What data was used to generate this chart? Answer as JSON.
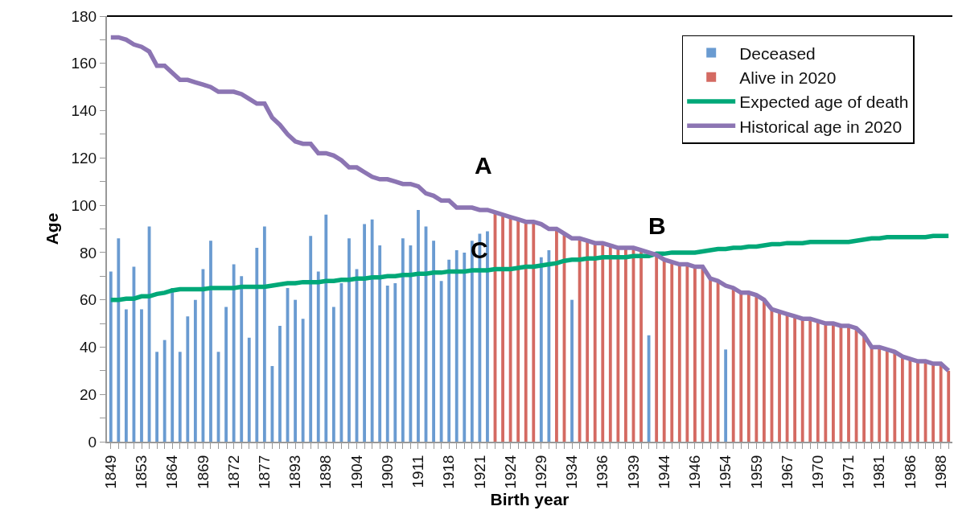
{
  "chart_data": {
    "type": "bar",
    "xlabel": "Birth year",
    "ylabel": "Age",
    "categories": [
      "1849",
      null,
      null,
      null,
      "1853",
      null,
      null,
      null,
      "1864",
      null,
      null,
      null,
      "1869",
      null,
      null,
      null,
      "1872",
      null,
      null,
      null,
      "1877",
      null,
      null,
      null,
      "1893",
      null,
      null,
      null,
      "1898",
      null,
      null,
      null,
      "1904",
      null,
      null,
      null,
      "1909",
      null,
      null,
      null,
      "1911",
      null,
      null,
      null,
      "1918",
      null,
      null,
      null,
      "1921",
      null,
      null,
      null,
      "1924",
      null,
      null,
      null,
      "1929",
      null,
      null,
      null,
      "1934",
      null,
      null,
      null,
      "1936",
      null,
      null,
      null,
      "1939",
      null,
      null,
      null,
      "1944",
      null,
      null,
      null,
      "1946",
      null,
      null,
      null,
      "1954",
      null,
      null,
      null,
      "1959",
      null,
      null,
      null,
      "1967",
      null,
      null,
      null,
      "1970",
      null,
      null,
      null,
      "1971",
      null,
      null,
      null,
      "1981",
      null,
      null,
      null,
      "1986",
      null,
      null,
      null,
      "1988",
      null
    ],
    "series": [
      {
        "name": "Deceased",
        "color": "#6a9bd1",
        "values": [
          72,
          86,
          56,
          74,
          56,
          91,
          38,
          43,
          65,
          38,
          53,
          60,
          73,
          85,
          38,
          57,
          75,
          70,
          44,
          82,
          91,
          32,
          49,
          65,
          60,
          52,
          87,
          72,
          96,
          57,
          67,
          86,
          73,
          92,
          94,
          83,
          66,
          67,
          86,
          83,
          98,
          91,
          85,
          68,
          77,
          81,
          80,
          85,
          88,
          89,
          null,
          null,
          null,
          null,
          null,
          null,
          78,
          81,
          null,
          null,
          60,
          null,
          null,
          null,
          null,
          null,
          null,
          null,
          null,
          null,
          45,
          null,
          null,
          null,
          null,
          null,
          null,
          null,
          null,
          null,
          39,
          null,
          null,
          null,
          null,
          null,
          null,
          null,
          null,
          null,
          null,
          null,
          null,
          null,
          null,
          null,
          null,
          null,
          null,
          null,
          null,
          null,
          null,
          null,
          null,
          null,
          null,
          null,
          null,
          null
        ]
      },
      {
        "name": "Alive in 2020",
        "color": "#d46a62",
        "values": [
          null,
          null,
          null,
          null,
          null,
          null,
          null,
          null,
          null,
          null,
          null,
          null,
          null,
          null,
          null,
          null,
          null,
          null,
          null,
          null,
          null,
          null,
          null,
          null,
          null,
          null,
          null,
          null,
          null,
          null,
          null,
          null,
          null,
          null,
          null,
          null,
          null,
          null,
          null,
          null,
          null,
          null,
          null,
          null,
          null,
          null,
          null,
          null,
          null,
          null,
          97,
          96,
          95,
          94,
          93,
          93,
          null,
          null,
          90,
          88,
          null,
          86,
          85,
          84,
          84,
          83,
          82,
          82,
          82,
          81,
          null,
          79,
          77,
          76,
          75,
          75,
          74,
          74,
          69,
          68,
          null,
          65,
          63,
          63,
          62,
          60,
          56,
          55,
          54,
          53,
          52,
          52,
          51,
          50,
          50,
          49,
          49,
          48,
          45,
          40,
          40,
          39,
          38,
          36,
          35,
          34,
          34,
          33,
          33,
          30
        ]
      },
      {
        "name": "Expected age of death",
        "type": "line",
        "color": "#00a878",
        "values": [
          60,
          60,
          60.5,
          60.5,
          61.5,
          61.5,
          62.5,
          63,
          64,
          64.5,
          64.5,
          64.5,
          64.5,
          65,
          65,
          65,
          65,
          65.5,
          65.5,
          65.5,
          65.5,
          66,
          66.5,
          67,
          67,
          67.5,
          67.5,
          67.5,
          68,
          68,
          68.5,
          68.5,
          69,
          69,
          69.5,
          69.5,
          70,
          70,
          70.5,
          70.5,
          71,
          71,
          71.5,
          71.5,
          72,
          72,
          72,
          72.5,
          72.5,
          72.5,
          73,
          73,
          73,
          73.5,
          74,
          74,
          74.5,
          75,
          75.5,
          76.5,
          77,
          77,
          77.5,
          77.5,
          78,
          78,
          78,
          78,
          78.5,
          78.5,
          78.5,
          79.5,
          79.5,
          80,
          80,
          80,
          80,
          80.5,
          81,
          81.5,
          81.5,
          82,
          82,
          82.5,
          82.5,
          83,
          83.5,
          83.5,
          84,
          84,
          84,
          84.5,
          84.5,
          84.5,
          84.5,
          84.5,
          84.5,
          85,
          85.5,
          86,
          86,
          86.5,
          86.5,
          86.5,
          86.5,
          86.5,
          86.5,
          87,
          87,
          87
        ]
      },
      {
        "name": "Historical age in 2020",
        "type": "line",
        "color": "#8c75b3",
        "values": [
          171,
          171,
          170,
          168,
          167,
          165,
          159,
          159,
          156,
          153,
          153,
          152,
          151,
          150,
          148,
          148,
          148,
          147,
          145,
          143,
          143,
          137,
          134,
          130,
          127,
          126,
          126,
          122,
          122,
          121,
          119,
          116,
          116,
          114,
          112,
          111,
          111,
          110,
          109,
          109,
          108,
          105,
          104,
          102,
          102,
          99,
          99,
          99,
          98,
          98,
          97,
          96,
          95,
          94,
          93,
          93,
          92,
          90,
          90,
          88,
          86,
          86,
          85,
          84,
          84,
          83,
          82,
          82,
          82,
          81,
          80,
          79,
          77,
          76,
          75,
          75,
          74,
          74,
          69,
          68,
          66,
          65,
          63,
          63,
          62,
          60,
          56,
          55,
          54,
          53,
          52,
          52,
          51,
          50,
          50,
          49,
          49,
          48,
          45,
          40,
          40,
          39,
          38,
          36,
          35,
          34,
          34,
          33,
          33,
          30
        ]
      }
    ],
    "ylim": [
      0,
      180
    ],
    "yticks": [
      0,
      {
        "value": 10,
        "label": null
      },
      20,
      {
        "value": 30,
        "label": null
      },
      40,
      {
        "value": 50,
        "label": null
      },
      60,
      {
        "value": 70,
        "label": null
      },
      80,
      {
        "value": 90,
        "label": null
      },
      100,
      {
        "value": 110,
        "label": null
      },
      120,
      {
        "value": 130,
        "label": null
      },
      140,
      {
        "value": 150,
        "label": null
      },
      160,
      {
        "value": 170,
        "label": null
      },
      180
    ],
    "annotations": [
      "A",
      "B",
      {
        "text": "C",
        "x": "1921",
        "y": 81
      }
    ],
    "legend": "top right",
    "grid": false
  }
}
